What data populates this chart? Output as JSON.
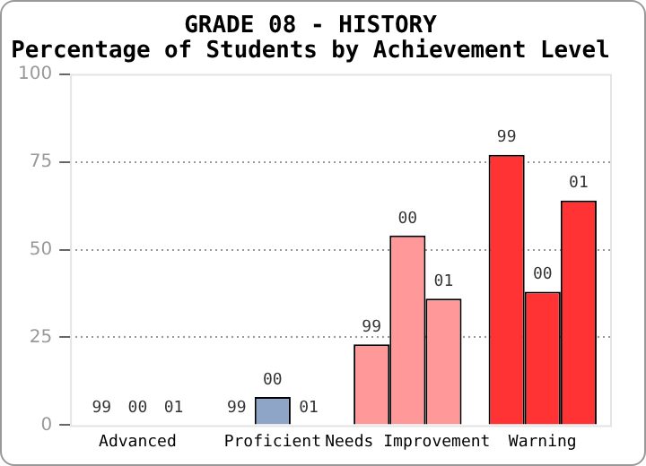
{
  "chart_data": {
    "type": "bar",
    "title": "GRADE 08 - HISTORY",
    "subtitle": "Percentage of Students by Achievement Level",
    "categories": [
      "Advanced",
      "Proficient",
      "Needs Improvement",
      "Warning"
    ],
    "series": [
      {
        "name": "99",
        "colors": [
          "#8fa5c8",
          "#8fa5c8",
          "#ff9999",
          "#ff3333"
        ],
        "values": [
          0,
          0,
          23,
          77
        ]
      },
      {
        "name": "00",
        "colors": [
          "#8fa5c8",
          "#8fa5c8",
          "#ff9999",
          "#ff3333"
        ],
        "values": [
          0,
          8,
          54,
          38
        ]
      },
      {
        "name": "01",
        "colors": [
          "#8fa5c8",
          "#8fa5c8",
          "#ff9999",
          "#ff3333"
        ],
        "values": [
          0,
          0,
          36,
          64
        ]
      }
    ],
    "ylim": [
      0,
      100
    ],
    "yticks": [
      0,
      25,
      50,
      75,
      100
    ],
    "grid": "y",
    "legend": false
  }
}
